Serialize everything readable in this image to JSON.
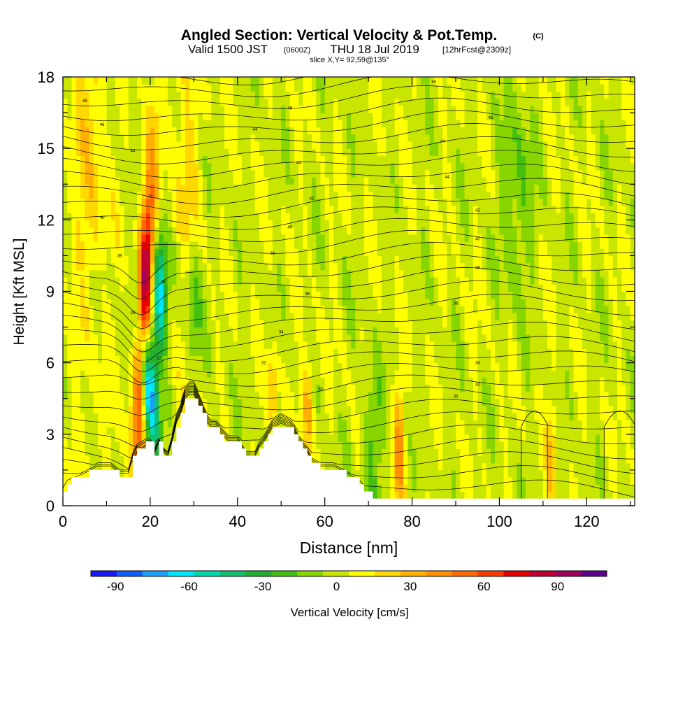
{
  "chart_data": {
    "type": "heatmap",
    "title": "Angled Section: Vertical Velocity & Pot.Temp.",
    "title_mark": "(C)",
    "subtitle": {
      "valid": "Valid 1500 JST",
      "utc": "(0600Z)",
      "date": "THU 18 Jul 2019",
      "fcst": "[12hrFcst@2309z]"
    },
    "slice_label": "slice X,Y= 92,59@135°",
    "xlabel": "Distance [nm]",
    "ylabel": "Height [Kft MSL]",
    "xlim": [
      0,
      131
    ],
    "ylim": [
      0,
      18
    ],
    "x_ticks": [
      0,
      20,
      40,
      60,
      80,
      100,
      120
    ],
    "y_ticks": [
      0,
      3,
      6,
      9,
      12,
      15,
      18
    ],
    "colorbar": {
      "label": "Vertical Velocity [cm/s]",
      "ticks": [
        -90,
        -60,
        -30,
        0,
        30,
        60,
        90
      ],
      "min": -100,
      "max": 110,
      "colors": [
        "#1a1aff",
        "#1060ff",
        "#1aa0ff",
        "#00e6ff",
        "#00d8b0",
        "#10c070",
        "#22b030",
        "#44c010",
        "#88d600",
        "#c8e600",
        "#ffff00",
        "#ffd800",
        "#ffb000",
        "#ff9000",
        "#ff6a00",
        "#ff3a00",
        "#e80000",
        "#c00030",
        "#a00060",
        "#600090"
      ]
    },
    "terrain": [
      [
        0,
        0.6
      ],
      [
        1,
        1.0
      ],
      [
        5,
        1.3
      ],
      [
        8,
        1.6
      ],
      [
        11,
        1.6
      ],
      [
        13,
        1.3
      ],
      [
        15,
        1.3
      ],
      [
        16,
        2.0
      ],
      [
        17,
        2.4
      ],
      [
        19,
        2.6
      ],
      [
        20,
        2.6
      ],
      [
        21,
        2.2
      ],
      [
        22,
        2.6
      ],
      [
        23,
        2.2
      ],
      [
        24,
        2.0
      ],
      [
        25,
        2.6
      ],
      [
        26,
        3.4
      ],
      [
        27,
        3.8
      ],
      [
        28,
        4.4
      ],
      [
        29,
        4.6
      ],
      [
        30,
        4.6
      ],
      [
        31,
        4.2
      ],
      [
        32,
        3.8
      ],
      [
        33,
        3.4
      ],
      [
        34,
        3.2
      ],
      [
        35,
        3.2
      ],
      [
        36,
        3.0
      ],
      [
        38,
        2.6
      ],
      [
        40,
        2.6
      ],
      [
        42,
        2.0
      ],
      [
        44,
        2.0
      ],
      [
        45,
        2.4
      ],
      [
        46,
        2.6
      ],
      [
        47,
        2.9
      ],
      [
        48,
        3.2
      ],
      [
        50,
        3.4
      ],
      [
        52,
        3.2
      ],
      [
        53,
        3.0
      ],
      [
        54,
        2.6
      ],
      [
        55,
        2.4
      ],
      [
        56,
        2.2
      ],
      [
        57,
        1.8
      ],
      [
        59,
        1.6
      ],
      [
        60,
        1.6
      ],
      [
        62,
        1.6
      ],
      [
        64,
        1.4
      ],
      [
        66,
        1.2
      ],
      [
        68,
        1.0
      ],
      [
        69,
        0.7
      ],
      [
        71,
        0.4
      ],
      [
        73,
        0.3
      ],
      [
        75,
        0.3
      ],
      [
        131,
        0.3
      ]
    ],
    "updraft_max": 105,
    "downdraft_min": -95,
    "theta_levels": [
      {
        "label": "50",
        "x": 85,
        "y": 17.8
      },
      {
        "label": "48",
        "x": 5,
        "y": 17.0
      },
      {
        "label": "46",
        "x": 52,
        "y": 16.7
      },
      {
        "label": "46",
        "x": 98,
        "y": 16.3
      },
      {
        "label": "46",
        "x": 9,
        "y": 16.0
      },
      {
        "label": "44",
        "x": 44,
        "y": 15.8
      },
      {
        "label": "44",
        "x": 87,
        "y": 15.3
      },
      {
        "label": "44",
        "x": 16,
        "y": 14.9
      },
      {
        "label": "44",
        "x": 54,
        "y": 14.4
      },
      {
        "label": "44",
        "x": 88,
        "y": 13.8
      },
      {
        "label": "42",
        "x": 57,
        "y": 12.9
      },
      {
        "label": "42",
        "x": 20,
        "y": 13.0
      },
      {
        "label": "42",
        "x": 95,
        "y": 12.4
      },
      {
        "label": "40",
        "x": 9,
        "y": 12.1
      },
      {
        "label": "40",
        "x": 52,
        "y": 11.7
      },
      {
        "label": "40",
        "x": 95,
        "y": 11.2
      },
      {
        "label": "38",
        "x": 48,
        "y": 10.6
      },
      {
        "label": "38",
        "x": 13,
        "y": 10.5
      },
      {
        "label": "38",
        "x": 95,
        "y": 10.0
      },
      {
        "label": "36",
        "x": 23,
        "y": 9.4
      },
      {
        "label": "36",
        "x": 56,
        "y": 8.9
      },
      {
        "label": "36",
        "x": 90,
        "y": 8.5
      },
      {
        "label": "34",
        "x": 16,
        "y": 8.1
      },
      {
        "label": "34",
        "x": 50,
        "y": 7.3
      },
      {
        "label": "34",
        "x": 95,
        "y": 6.0
      },
      {
        "label": "32",
        "x": 22,
        "y": 6.2
      },
      {
        "label": "32",
        "x": 46,
        "y": 6.0
      },
      {
        "label": "32",
        "x": 95,
        "y": 5.1
      },
      {
        "label": "30",
        "x": 59,
        "y": 4.9
      },
      {
        "label": "30",
        "x": 90,
        "y": 4.6
      }
    ]
  }
}
